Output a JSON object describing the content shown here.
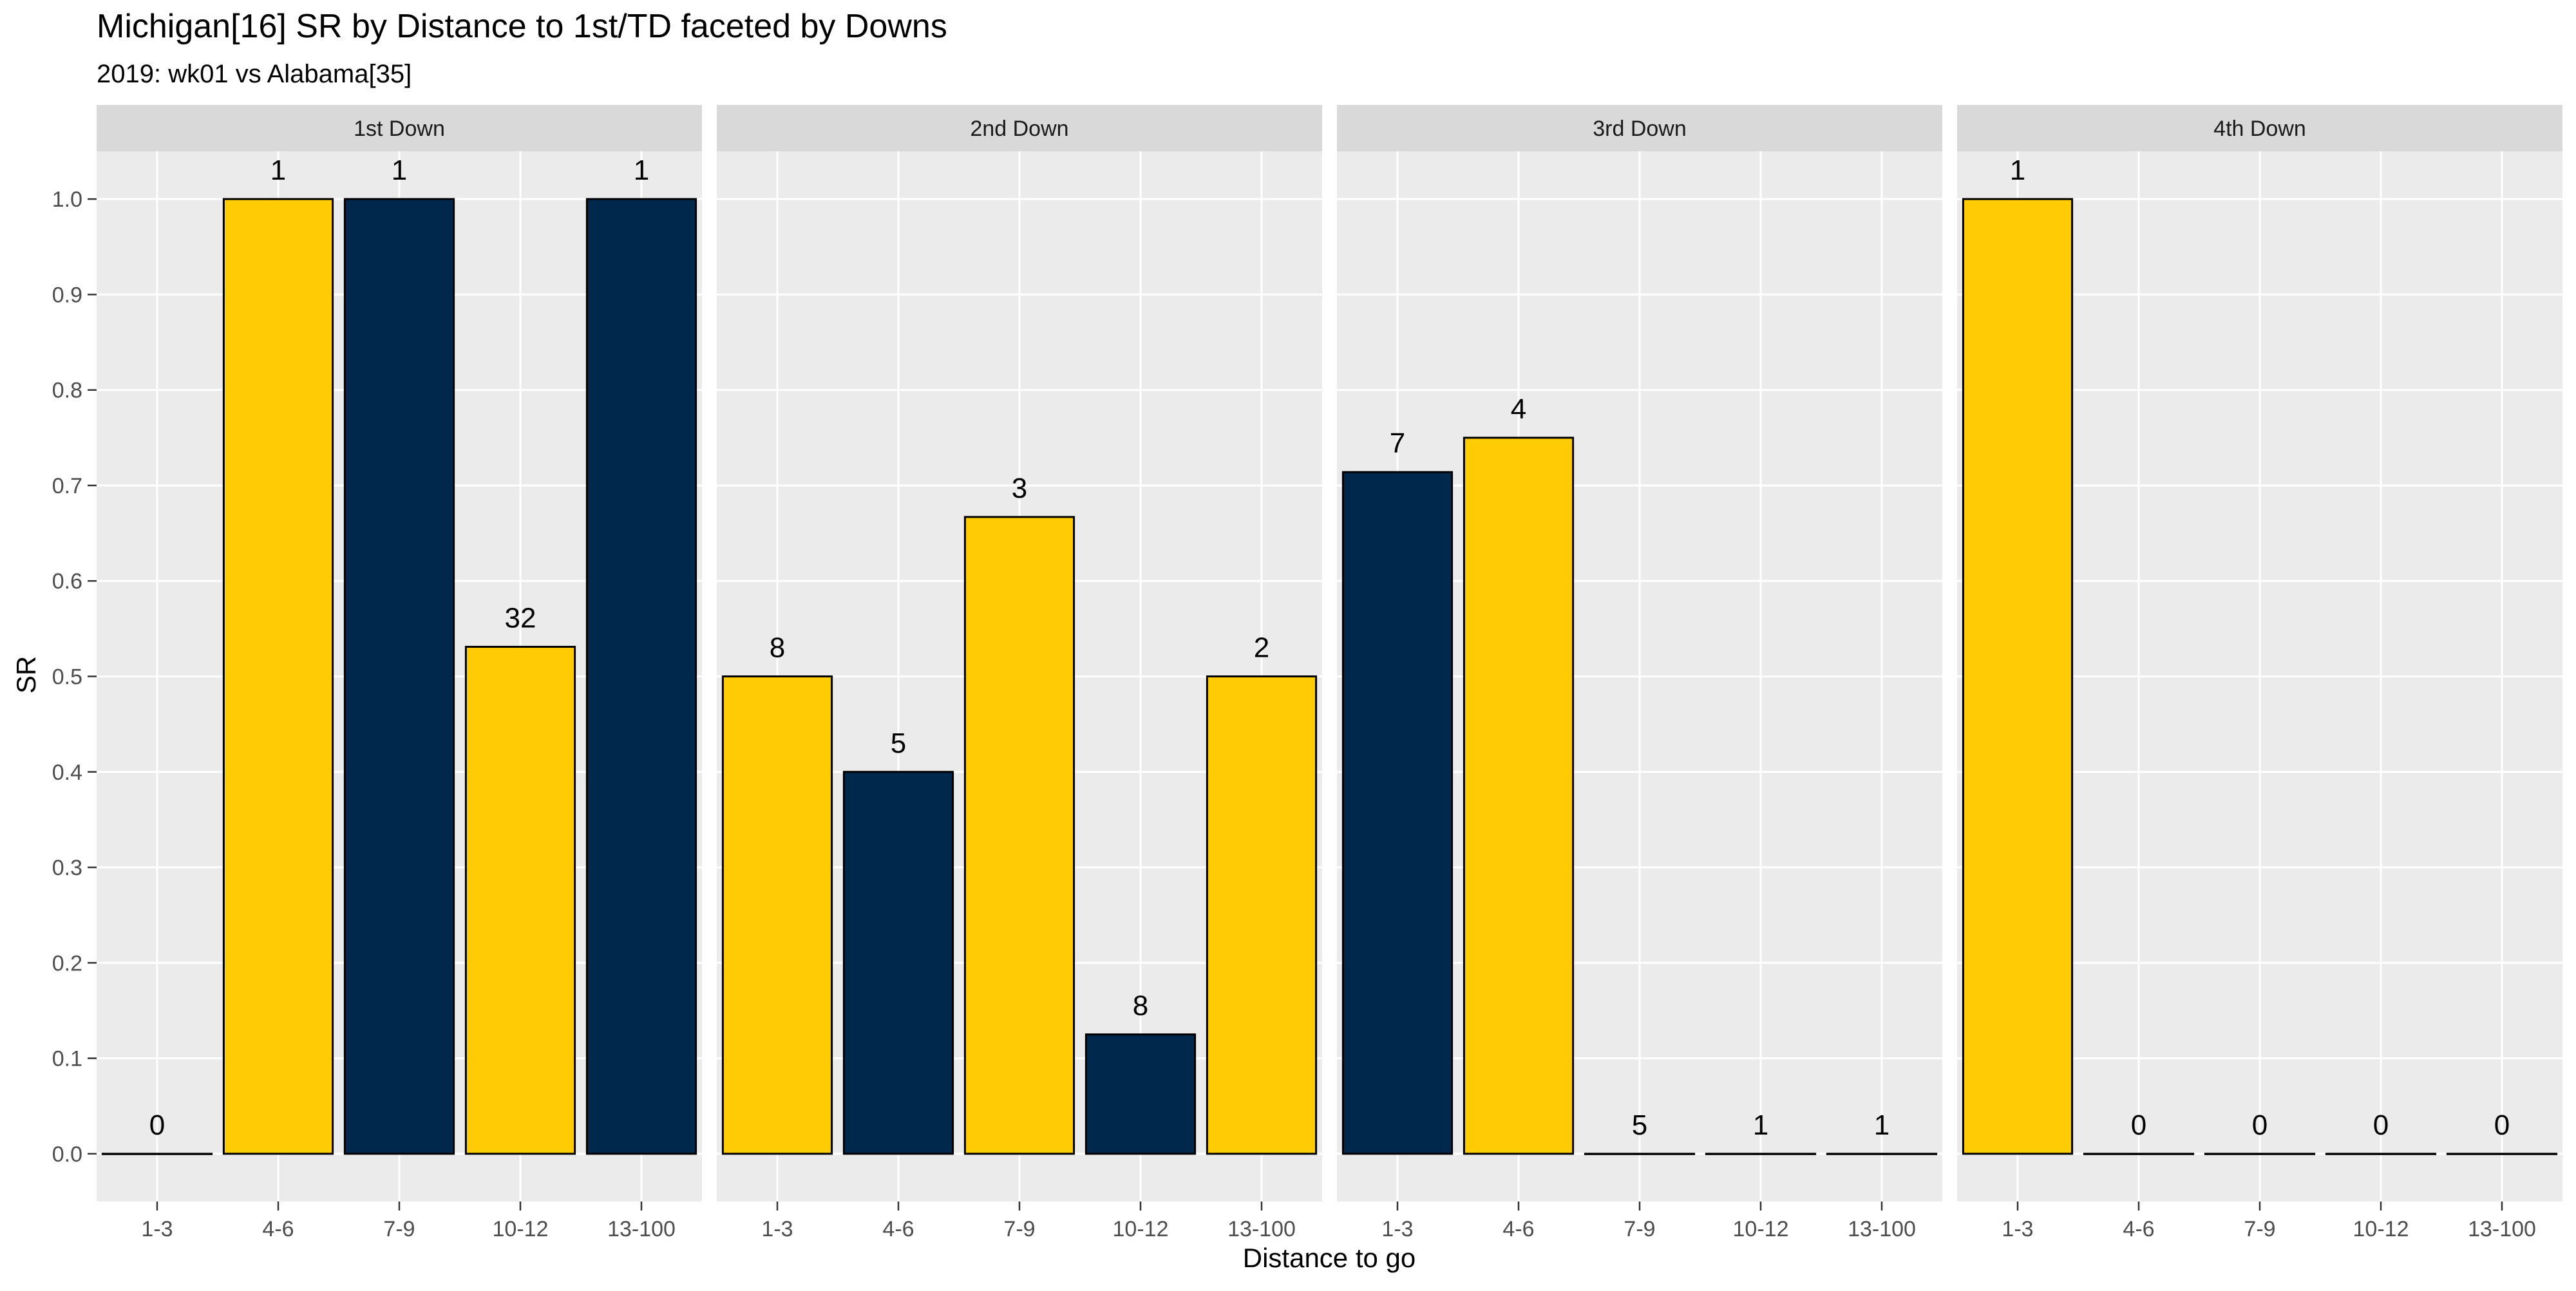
{
  "chart_data": {
    "type": "bar",
    "title": "Michigan[16] SR by Distance to 1st/TD faceted by Downs",
    "subtitle": "2019: wk01 vs Alabama[35]",
    "xlabel": "Distance to go",
    "ylabel": "SR",
    "ylim": [
      -0.05,
      1.05
    ],
    "y_ticks": [
      "0.0",
      "0.1",
      "0.2",
      "0.3",
      "0.4",
      "0.5",
      "0.6",
      "0.7",
      "0.8",
      "0.9",
      "1.0"
    ],
    "categories": [
      "1-3",
      "4-6",
      "7-9",
      "10-12",
      "13-100"
    ],
    "colors": {
      "maize": "#FFCB05",
      "blue": "#00274C"
    },
    "facets": [
      {
        "label": "1st Down",
        "values": [
          0,
          1,
          1,
          0.531,
          1
        ],
        "counts": [
          "0",
          "1",
          "1",
          "32",
          "1"
        ],
        "fills": [
          "maize",
          "maize",
          "blue",
          "maize",
          "blue"
        ]
      },
      {
        "label": "2nd Down",
        "values": [
          0.5,
          0.4,
          0.667,
          0.125,
          0.5
        ],
        "counts": [
          "8",
          "5",
          "3",
          "8",
          "2"
        ],
        "fills": [
          "maize",
          "blue",
          "maize",
          "blue",
          "maize"
        ]
      },
      {
        "label": "3rd Down",
        "values": [
          0.714,
          0.75,
          0,
          0,
          0
        ],
        "counts": [
          "7",
          "4",
          "5",
          "1",
          "1"
        ],
        "fills": [
          "blue",
          "maize",
          "maize",
          "blue",
          "blue"
        ]
      },
      {
        "label": "4th Down",
        "values": [
          1,
          0,
          0,
          0,
          0
        ],
        "counts": [
          "1",
          "0",
          "0",
          "0",
          "0"
        ],
        "fills": [
          "maize",
          "maize",
          "maize",
          "maize",
          "maize"
        ]
      }
    ],
    "grid": true,
    "legend": "none"
  }
}
